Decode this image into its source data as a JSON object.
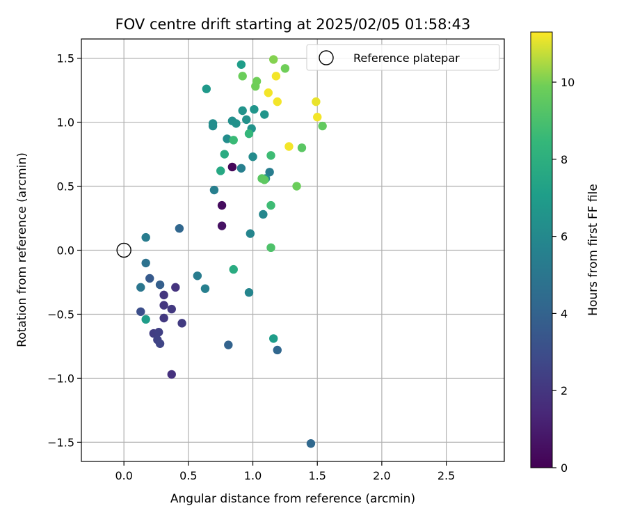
{
  "chart_data": {
    "type": "scatter",
    "title": "FOV centre drift starting at 2025/02/05 01:58:43",
    "xlabel": "Angular distance from reference (arcmin)",
    "ylabel": "Rotation from reference (arcmin)",
    "xlim": [
      -0.33,
      2.95
    ],
    "ylim": [
      -1.65,
      1.65
    ],
    "xticks": [
      0.0,
      0.5,
      1.0,
      1.5,
      2.0,
      2.5
    ],
    "xtick_labels": [
      "0.0",
      "0.5",
      "1.0",
      "1.5",
      "2.0",
      "2.5"
    ],
    "yticks": [
      -1.5,
      -1.0,
      -0.5,
      0.0,
      0.5,
      1.0,
      1.5
    ],
    "ytick_labels": [
      "−1.5",
      "−1.0",
      "−0.5",
      "0.0",
      "0.5",
      "1.0",
      "1.5"
    ],
    "grid": true,
    "legend": {
      "label": "Reference platepar",
      "position": "top-right"
    },
    "reference_point": {
      "x": 0.0,
      "y": 0.0
    },
    "colorbar": {
      "label": "Hours from first FF file",
      "colormap": "viridis",
      "range": [
        0,
        11.3
      ],
      "ticks": [
        0,
        2,
        4,
        6,
        8,
        10
      ],
      "tick_labels": [
        "0",
        "2",
        "4",
        "6",
        "8",
        "10"
      ]
    },
    "points": [
      {
        "x": 0.84,
        "y": 0.65,
        "c": 0.2
      },
      {
        "x": 0.76,
        "y": 0.35,
        "c": 0.4
      },
      {
        "x": 0.76,
        "y": 0.19,
        "c": 0.6
      },
      {
        "x": 0.37,
        "y": -0.97,
        "c": 1.8
      },
      {
        "x": 0.4,
        "y": -0.29,
        "c": 1.9
      },
      {
        "x": 0.31,
        "y": -0.35,
        "c": 2.0
      },
      {
        "x": 0.31,
        "y": -0.43,
        "c": 2.0
      },
      {
        "x": 0.37,
        "y": -0.46,
        "c": 2.1
      },
      {
        "x": 0.31,
        "y": -0.53,
        "c": 2.1
      },
      {
        "x": 0.45,
        "y": -0.57,
        "c": 2.2
      },
      {
        "x": 0.23,
        "y": -0.65,
        "c": 2.3
      },
      {
        "x": 0.27,
        "y": -0.64,
        "c": 2.4
      },
      {
        "x": 0.26,
        "y": -0.7,
        "c": 2.5
      },
      {
        "x": 0.28,
        "y": -0.73,
        "c": 2.6
      },
      {
        "x": 0.13,
        "y": -0.48,
        "c": 3.0
      },
      {
        "x": 0.2,
        "y": -0.22,
        "c": 3.6
      },
      {
        "x": 0.28,
        "y": -0.27,
        "c": 3.8
      },
      {
        "x": 0.81,
        "y": -0.74,
        "c": 4.0
      },
      {
        "x": 1.19,
        "y": -0.78,
        "c": 4.2
      },
      {
        "x": 1.45,
        "y": -1.51,
        "c": 4.3
      },
      {
        "x": 0.43,
        "y": 0.17,
        "c": 4.2
      },
      {
        "x": 0.17,
        "y": -0.1,
        "c": 4.8
      },
      {
        "x": 0.13,
        "y": -0.29,
        "c": 5.0
      },
      {
        "x": 0.17,
        "y": 0.1,
        "c": 5.3
      },
      {
        "x": 0.57,
        "y": -0.2,
        "c": 5.3
      },
      {
        "x": 0.63,
        "y": -0.3,
        "c": 5.5
      },
      {
        "x": 0.7,
        "y": 0.47,
        "c": 5.5
      },
      {
        "x": 0.91,
        "y": 0.64,
        "c": 5.5
      },
      {
        "x": 1.13,
        "y": 0.61,
        "c": 5.4
      },
      {
        "x": 0.98,
        "y": 0.13,
        "c": 5.8
      },
      {
        "x": 0.97,
        "y": -0.33,
        "c": 5.8
      },
      {
        "x": 1.08,
        "y": 0.28,
        "c": 5.9
      },
      {
        "x": 1.0,
        "y": 0.73,
        "c": 6.1
      },
      {
        "x": 1.1,
        "y": 0.56,
        "c": 6.2
      },
      {
        "x": 0.69,
        "y": 0.97,
        "c": 6.1
      },
      {
        "x": 0.69,
        "y": 0.99,
        "c": 6.2
      },
      {
        "x": 0.8,
        "y": 0.87,
        "c": 6.2
      },
      {
        "x": 0.84,
        "y": 1.01,
        "c": 6.3
      },
      {
        "x": 0.87,
        "y": 0.99,
        "c": 6.4
      },
      {
        "x": 0.92,
        "y": 1.09,
        "c": 6.5
      },
      {
        "x": 0.95,
        "y": 1.02,
        "c": 6.4
      },
      {
        "x": 0.99,
        "y": 0.95,
        "c": 6.5
      },
      {
        "x": 1.01,
        "y": 1.1,
        "c": 6.6
      },
      {
        "x": 1.09,
        "y": 1.06,
        "c": 6.6
      },
      {
        "x": 0.64,
        "y": 1.26,
        "c": 6.8
      },
      {
        "x": 0.91,
        "y": 1.45,
        "c": 7.0
      },
      {
        "x": 0.17,
        "y": -0.54,
        "c": 7.0
      },
      {
        "x": 1.16,
        "y": -0.69,
        "c": 7.0
      },
      {
        "x": 0.75,
        "y": 0.62,
        "c": 7.6
      },
      {
        "x": 0.78,
        "y": 0.75,
        "c": 7.8
      },
      {
        "x": 0.85,
        "y": -0.15,
        "c": 7.8
      },
      {
        "x": 0.97,
        "y": 0.91,
        "c": 8.4
      },
      {
        "x": 0.85,
        "y": 0.86,
        "c": 8.6
      },
      {
        "x": 1.14,
        "y": 0.74,
        "c": 8.7
      },
      {
        "x": 1.14,
        "y": 0.35,
        "c": 8.7
      },
      {
        "x": 1.14,
        "y": 0.02,
        "c": 9.1
      },
      {
        "x": 1.07,
        "y": 0.56,
        "c": 9.4
      },
      {
        "x": 1.09,
        "y": 0.55,
        "c": 9.5
      },
      {
        "x": 1.34,
        "y": 0.5,
        "c": 9.8
      },
      {
        "x": 1.38,
        "y": 0.8,
        "c": 9.4
      },
      {
        "x": 1.54,
        "y": 0.97,
        "c": 9.6
      },
      {
        "x": 0.92,
        "y": 1.36,
        "c": 9.8
      },
      {
        "x": 1.02,
        "y": 1.28,
        "c": 9.9
      },
      {
        "x": 1.03,
        "y": 1.32,
        "c": 9.9
      },
      {
        "x": 1.25,
        "y": 1.42,
        "c": 9.9
      },
      {
        "x": 1.16,
        "y": 1.49,
        "c": 10.1
      },
      {
        "x": 1.12,
        "y": 1.23,
        "c": 11.2
      },
      {
        "x": 1.18,
        "y": 1.36,
        "c": 11.2
      },
      {
        "x": 1.19,
        "y": 1.16,
        "c": 11.2
      },
      {
        "x": 1.28,
        "y": 0.81,
        "c": 11.2
      },
      {
        "x": 1.49,
        "y": 1.16,
        "c": 11.1
      },
      {
        "x": 1.5,
        "y": 1.04,
        "c": 11.2
      }
    ]
  }
}
